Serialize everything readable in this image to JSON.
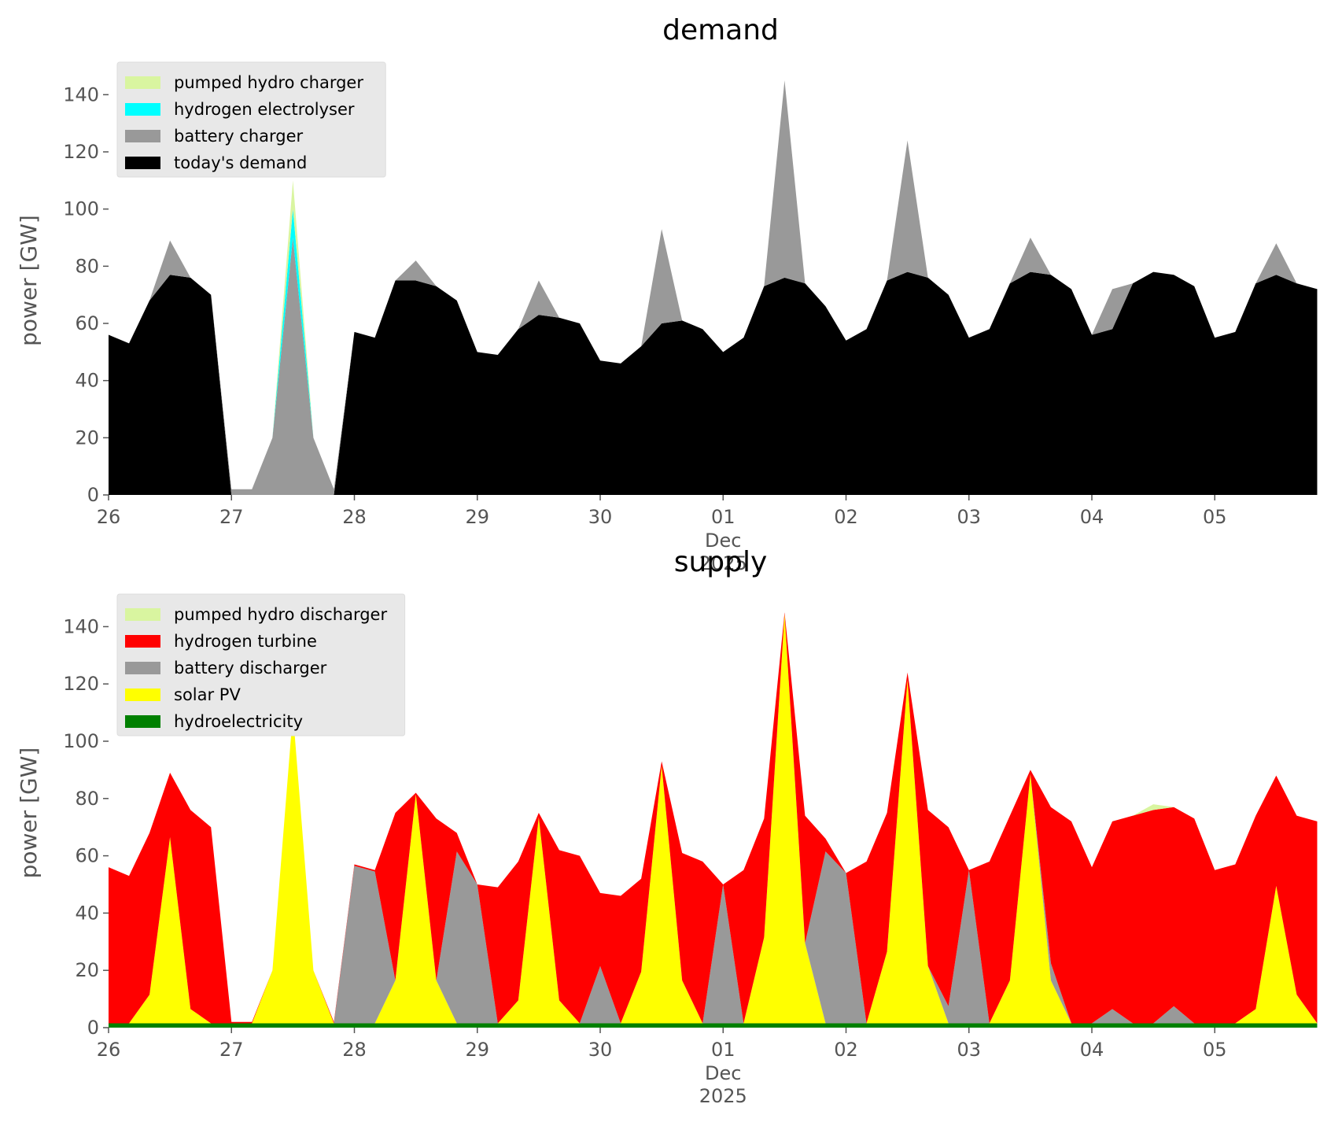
{
  "chart_data": [
    {
      "type": "stacked-area",
      "title": "demand",
      "ylabel": "power [GW]",
      "x": [
        0,
        4,
        8,
        12,
        16,
        20,
        24,
        28,
        32,
        36,
        40,
        44,
        48,
        52,
        56,
        60,
        64,
        68,
        72,
        76,
        80,
        84,
        88,
        92,
        96,
        100,
        104,
        108,
        112,
        116,
        120,
        124,
        128,
        132,
        136,
        140,
        144,
        148,
        152,
        156,
        160,
        164,
        168,
        172,
        176,
        180,
        184,
        188,
        192,
        196,
        200,
        204,
        208,
        212,
        216,
        220,
        224,
        228,
        232,
        236
      ],
      "xlim": [
        0,
        239
      ],
      "xticks": [
        {
          "value": 0,
          "label": "26"
        },
        {
          "value": 24,
          "label": "27"
        },
        {
          "value": 48,
          "label": "28"
        },
        {
          "value": 72,
          "label": "29"
        },
        {
          "value": 96,
          "label": "30"
        },
        {
          "value": 120,
          "label": "01"
        },
        {
          "value": 144,
          "label": "02"
        },
        {
          "value": 168,
          "label": "03"
        },
        {
          "value": 192,
          "label": "04"
        },
        {
          "value": 216,
          "label": "05"
        }
      ],
      "x_sublabel": [
        "Dec",
        "2025"
      ],
      "ylim": [
        0,
        150
      ],
      "yticks": [
        0,
        20,
        40,
        60,
        80,
        100,
        120,
        140
      ],
      "legend": "upper left",
      "series": [
        {
          "name": "pumped hydro charger",
          "color": "#d9f5a0",
          "values": [
            0,
            0,
            0,
            0,
            0,
            0,
            0,
            0,
            0,
            10,
            0,
            0,
            0,
            0,
            0,
            0,
            0,
            0,
            0,
            0,
            0,
            0,
            0,
            0,
            0,
            0,
            0,
            0,
            0,
            0,
            0,
            0,
            0,
            0,
            0,
            0,
            0,
            0,
            0,
            0,
            0,
            0,
            0,
            0,
            0,
            0,
            0,
            0,
            0,
            0,
            0,
            0,
            0,
            0,
            0,
            0,
            0,
            0,
            0,
            0
          ]
        },
        {
          "name": "hydrogen electrolyser",
          "color": "#00ffff",
          "values": [
            0,
            0,
            0,
            0,
            0,
            0,
            0,
            0,
            0,
            10,
            0,
            0,
            0,
            0,
            0,
            0,
            0,
            0,
            0,
            0,
            0,
            0,
            0,
            0,
            0,
            0,
            0,
            0,
            0,
            0,
            0,
            0,
            0,
            0,
            0,
            0,
            0,
            0,
            0,
            0,
            0,
            0,
            0,
            0,
            0,
            0,
            0,
            0,
            0,
            0,
            0,
            0,
            0,
            0,
            0,
            0,
            0,
            0,
            0,
            0
          ]
        },
        {
          "name": "battery charger",
          "color": "#999999",
          "values": [
            0,
            0,
            0,
            12,
            0,
            0,
            2,
            2,
            20,
            90,
            20,
            2,
            0,
            0,
            0,
            7,
            0,
            0,
            0,
            0,
            0,
            12,
            0,
            0,
            0,
            0,
            0,
            33,
            0,
            0,
            0,
            0,
            0,
            69,
            0,
            0,
            0,
            0,
            0,
            46,
            0,
            0,
            0,
            0,
            0,
            12,
            0,
            0,
            0,
            14,
            0,
            0,
            0,
            0,
            0,
            0,
            0,
            11,
            0,
            0
          ]
        },
        {
          "name": "today's demand",
          "color": "#000000",
          "values": [
            56,
            53,
            68,
            77,
            76,
            70,
            0,
            0,
            0,
            0,
            0,
            0,
            57,
            55,
            75,
            75,
            73,
            68,
            50,
            49,
            58,
            63,
            62,
            60,
            47,
            46,
            52,
            60,
            61,
            58,
            50,
            55,
            73,
            76,
            74,
            66,
            54,
            58,
            75,
            78,
            76,
            70,
            55,
            58,
            74,
            78,
            77,
            72,
            56,
            58,
            74,
            78,
            77,
            73,
            55,
            57,
            74,
            77,
            74,
            72
          ]
        }
      ]
    },
    {
      "type": "stacked-area",
      "title": "supply",
      "ylabel": "power [GW]",
      "x": [
        0,
        4,
        8,
        12,
        16,
        20,
        24,
        28,
        32,
        36,
        40,
        44,
        48,
        52,
        56,
        60,
        64,
        68,
        72,
        76,
        80,
        84,
        88,
        92,
        96,
        100,
        104,
        108,
        112,
        116,
        120,
        124,
        128,
        132,
        136,
        140,
        144,
        148,
        152,
        156,
        160,
        164,
        168,
        172,
        176,
        180,
        184,
        188,
        192,
        196,
        200,
        204,
        208,
        212,
        216,
        220,
        224,
        228,
        232,
        236
      ],
      "xlim": [
        0,
        239
      ],
      "xticks": [
        {
          "value": 0,
          "label": "26"
        },
        {
          "value": 24,
          "label": "27"
        },
        {
          "value": 48,
          "label": "28"
        },
        {
          "value": 72,
          "label": "29"
        },
        {
          "value": 96,
          "label": "30"
        },
        {
          "value": 120,
          "label": "01"
        },
        {
          "value": 144,
          "label": "02"
        },
        {
          "value": 168,
          "label": "03"
        },
        {
          "value": 192,
          "label": "04"
        },
        {
          "value": 216,
          "label": "05"
        }
      ],
      "x_sublabel": [
        "Dec",
        "2025"
      ],
      "ylim": [
        0,
        150
      ],
      "yticks": [
        0,
        20,
        40,
        60,
        80,
        100,
        120,
        140
      ],
      "legend": "upper left",
      "series": [
        {
          "name": "pumped hydro discharger",
          "color": "#d9f5a0",
          "values": [
            0,
            0,
            0,
            0,
            0,
            0,
            0,
            0,
            0,
            0,
            0,
            0,
            0,
            0,
            0,
            0,
            0,
            0,
            0,
            0,
            0,
            0,
            0,
            0,
            0,
            0,
            0,
            0,
            0,
            0,
            0,
            0,
            0,
            0,
            0,
            0,
            0,
            0,
            0,
            0,
            0,
            0,
            0,
            0,
            0,
            0,
            0,
            0,
            0,
            0,
            0,
            2,
            0,
            0,
            0,
            0,
            0,
            0,
            0,
            0
          ]
        },
        {
          "name": "hydrogen turbine",
          "color": "#ff0000",
          "values": [
            54.5,
            51.5,
            56.5,
            22.5,
            69.5,
            68.5,
            0.5,
            0.5,
            0,
            0,
            0,
            0.5,
            0.5,
            0.5,
            58.5,
            0.5,
            56.5,
            6.5,
            0,
            47.5,
            48.5,
            1.5,
            52.5,
            58.5,
            25.5,
            44.5,
            32.5,
            1.5,
            44.5,
            56.5,
            0,
            53.5,
            41.5,
            0.5,
            44.5,
            4.5,
            0,
            56.5,
            48.5,
            2.5,
            54.5,
            62.5,
            0,
            56.5,
            57.5,
            1.5,
            54.5,
            70.5,
            54.5,
            65.5,
            72.5,
            74.5,
            69.5,
            71.5,
            53.5,
            55.5,
            67.5,
            38.5,
            62.5,
            70.5
          ]
        },
        {
          "name": "battery discharger",
          "color": "#999999",
          "values": [
            0,
            0,
            0,
            0,
            0,
            0,
            0,
            0,
            0,
            0,
            0,
            0,
            55,
            53,
            0,
            0,
            0,
            60,
            48.5,
            0,
            0,
            0,
            0,
            0,
            20,
            0,
            0,
            0,
            0,
            0,
            48.5,
            0,
            0,
            0,
            0,
            60,
            52.5,
            0,
            0,
            0,
            0,
            6,
            53.5,
            0,
            0,
            0,
            6,
            0,
            0,
            5,
            0,
            0,
            6,
            0,
            0,
            0,
            0,
            0,
            0,
            0
          ]
        },
        {
          "name": "solar PV",
          "color": "#ffff00",
          "values": [
            0,
            0,
            10,
            65,
            5,
            0,
            0,
            0,
            18.5,
            108.5,
            18.5,
            0,
            0,
            0,
            15,
            80,
            15,
            0,
            0,
            0,
            8,
            72,
            8,
            0,
            0,
            0,
            18,
            90,
            15,
            0,
            0,
            0,
            30,
            143,
            28,
            0,
            0,
            0,
            25,
            120,
            20,
            0,
            0,
            0,
            15,
            87,
            15,
            0,
            0,
            0,
            0,
            0,
            0,
            0,
            0,
            0,
            5,
            48,
            10,
            0
          ]
        },
        {
          "name": "hydroelectricity",
          "color": "#008000",
          "values": [
            1.5,
            1.5,
            1.5,
            1.5,
            1.5,
            1.5,
            1.5,
            1.5,
            1.5,
            1.5,
            1.5,
            1.5,
            1.5,
            1.5,
            1.5,
            1.5,
            1.5,
            1.5,
            1.5,
            1.5,
            1.5,
            1.5,
            1.5,
            1.5,
            1.5,
            1.5,
            1.5,
            1.5,
            1.5,
            1.5,
            1.5,
            1.5,
            1.5,
            1.5,
            1.5,
            1.5,
            1.5,
            1.5,
            1.5,
            1.5,
            1.5,
            1.5,
            1.5,
            1.5,
            1.5,
            1.5,
            1.5,
            1.5,
            1.5,
            1.5,
            1.5,
            1.5,
            1.5,
            1.5,
            1.5,
            1.5,
            1.5,
            1.5,
            1.5,
            1.5
          ]
        }
      ]
    }
  ]
}
